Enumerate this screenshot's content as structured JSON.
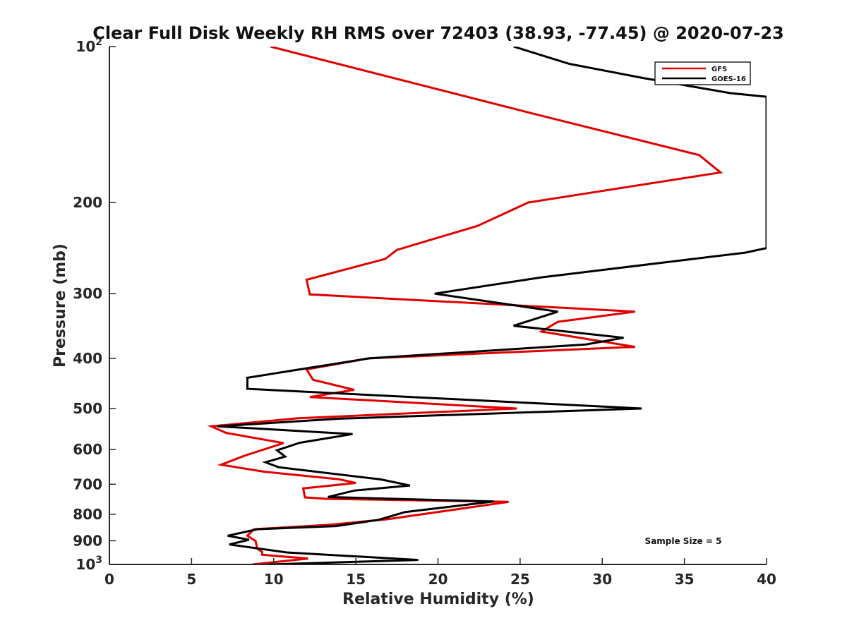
{
  "chart_data": {
    "type": "line",
    "title": "Clear Full Disk Weekly RH RMS over 72403 (38.93, -77.45) @ 2020-07-23",
    "xlabel": "Relative Humidity (%)",
    "ylabel": "Pressure (mb)",
    "xlim": [
      0,
      40
    ],
    "ylim": [
      100,
      1000
    ],
    "y_scale": "log",
    "y_reversed": true,
    "grid": false,
    "legend_position": "top-right",
    "x_ticks": [
      {
        "value": 0,
        "label": "0"
      },
      {
        "value": 5,
        "label": "5"
      },
      {
        "value": 10,
        "label": "10"
      },
      {
        "value": 15,
        "label": "15"
      },
      {
        "value": 20,
        "label": "20"
      },
      {
        "value": 25,
        "label": "25"
      },
      {
        "value": 30,
        "label": "30"
      },
      {
        "value": 35,
        "label": "35"
      },
      {
        "value": 40,
        "label": "40"
      }
    ],
    "y_ticks": [
      {
        "value": 100,
        "label": "10",
        "sup": "2"
      },
      {
        "value": 200,
        "label": "200",
        "sup": ""
      },
      {
        "value": 300,
        "label": "300",
        "sup": ""
      },
      {
        "value": 400,
        "label": "400",
        "sup": ""
      },
      {
        "value": 500,
        "label": "500",
        "sup": ""
      },
      {
        "value": 600,
        "label": "600",
        "sup": ""
      },
      {
        "value": 700,
        "label": "700",
        "sup": ""
      },
      {
        "value": 800,
        "label": "800",
        "sup": ""
      },
      {
        "value": 900,
        "label": "900",
        "sup": ""
      },
      {
        "value": 1000,
        "label": "10",
        "sup": "3"
      }
    ],
    "annotation": "Sample Size = 5",
    "series": [
      {
        "name": "GFS",
        "color": "#e00000",
        "points": [
          [
            9.8,
            100
          ],
          [
            25.9,
            135
          ],
          [
            35.9,
            162
          ],
          [
            37.2,
            175
          ],
          [
            25.5,
            200
          ],
          [
            22.4,
            222
          ],
          [
            17.5,
            247
          ],
          [
            16.8,
            257
          ],
          [
            12.0,
            282
          ],
          [
            12.2,
            301
          ],
          [
            32.0,
            325
          ],
          [
            27.3,
            340
          ],
          [
            26.3,
            355
          ],
          [
            32.0,
            380
          ],
          [
            15.8,
            400
          ],
          [
            12.0,
            420
          ],
          [
            12.4,
            440
          ],
          [
            14.9,
            460
          ],
          [
            12.2,
            475
          ],
          [
            24.8,
            500
          ],
          [
            11.5,
            522
          ],
          [
            6.2,
            541
          ],
          [
            7.1,
            557
          ],
          [
            10.6,
            583
          ],
          [
            8.2,
            617
          ],
          [
            6.8,
            642
          ],
          [
            9.4,
            662
          ],
          [
            14.0,
            685
          ],
          [
            15.0,
            696
          ],
          [
            11.8,
            713
          ],
          [
            11.9,
            742
          ],
          [
            13.2,
            747
          ],
          [
            24.3,
            757
          ],
          [
            16.9,
            818
          ],
          [
            13.4,
            838
          ],
          [
            8.8,
            855
          ],
          [
            8.4,
            880
          ],
          [
            8.9,
            901
          ],
          [
            9.0,
            932
          ],
          [
            9.3,
            946
          ],
          [
            9.3,
            958
          ],
          [
            12.1,
            974
          ],
          [
            8.7,
            1000
          ]
        ]
      },
      {
        "name": "GOES-16",
        "color": "#000000",
        "points": [
          [
            24.6,
            100
          ],
          [
            28.0,
            108
          ],
          [
            32.5,
            115
          ],
          [
            37.8,
            123
          ],
          [
            40.0,
            125
          ],
          [
            40.0,
            245
          ],
          [
            38.7,
            250
          ],
          [
            26.3,
            279
          ],
          [
            19.8,
            300
          ],
          [
            27.3,
            325
          ],
          [
            24.6,
            346
          ],
          [
            31.3,
            365
          ],
          [
            29.0,
            376
          ],
          [
            15.8,
            400
          ],
          [
            11.6,
            420
          ],
          [
            8.4,
            436
          ],
          [
            8.4,
            458
          ],
          [
            32.4,
            500
          ],
          [
            14.0,
            523
          ],
          [
            6.6,
            541
          ],
          [
            14.8,
            560
          ],
          [
            11.6,
            582
          ],
          [
            10.2,
            602
          ],
          [
            10.7,
            619
          ],
          [
            9.5,
            635
          ],
          [
            10.3,
            649
          ],
          [
            16.5,
            685
          ],
          [
            18.3,
            704
          ],
          [
            14.9,
            720
          ],
          [
            13.3,
            741
          ],
          [
            23.4,
            756
          ],
          [
            18.0,
            792
          ],
          [
            16.4,
            820
          ],
          [
            13.8,
            843
          ],
          [
            9.0,
            855
          ],
          [
            7.2,
            880
          ],
          [
            8.5,
            896
          ],
          [
            7.3,
            915
          ],
          [
            10.8,
            948
          ],
          [
            18.8,
            980
          ],
          [
            9.7,
            1000
          ]
        ]
      }
    ]
  }
}
